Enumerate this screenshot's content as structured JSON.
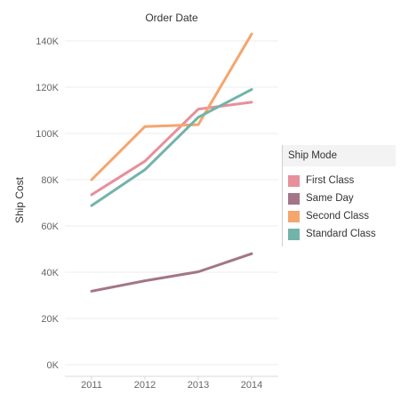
{
  "chart_data": {
    "type": "line",
    "title": "Order Date",
    "xlabel": "",
    "ylabel": "Ship Cost",
    "x": [
      "2011",
      "2012",
      "2013",
      "2014"
    ],
    "y_ticks": [
      "0K",
      "20K",
      "40K",
      "60K",
      "80K",
      "100K",
      "120K",
      "140K"
    ],
    "ylim": [
      0,
      150000
    ],
    "grid": true,
    "legend": {
      "title": "Ship Mode",
      "position": "right"
    },
    "series": [
      {
        "name": "First Class",
        "color": "#e78f9b",
        "values": [
          73500,
          88000,
          110500,
          113500
        ]
      },
      {
        "name": "Same Day",
        "color": "#a27688",
        "values": [
          31800,
          36300,
          40200,
          48000
        ]
      },
      {
        "name": "Second Class",
        "color": "#f5a56e",
        "values": [
          80000,
          103000,
          103800,
          143000
        ]
      },
      {
        "name": "Standard Class",
        "color": "#73b3a9",
        "values": [
          68800,
          84300,
          107000,
          119000
        ]
      }
    ]
  }
}
